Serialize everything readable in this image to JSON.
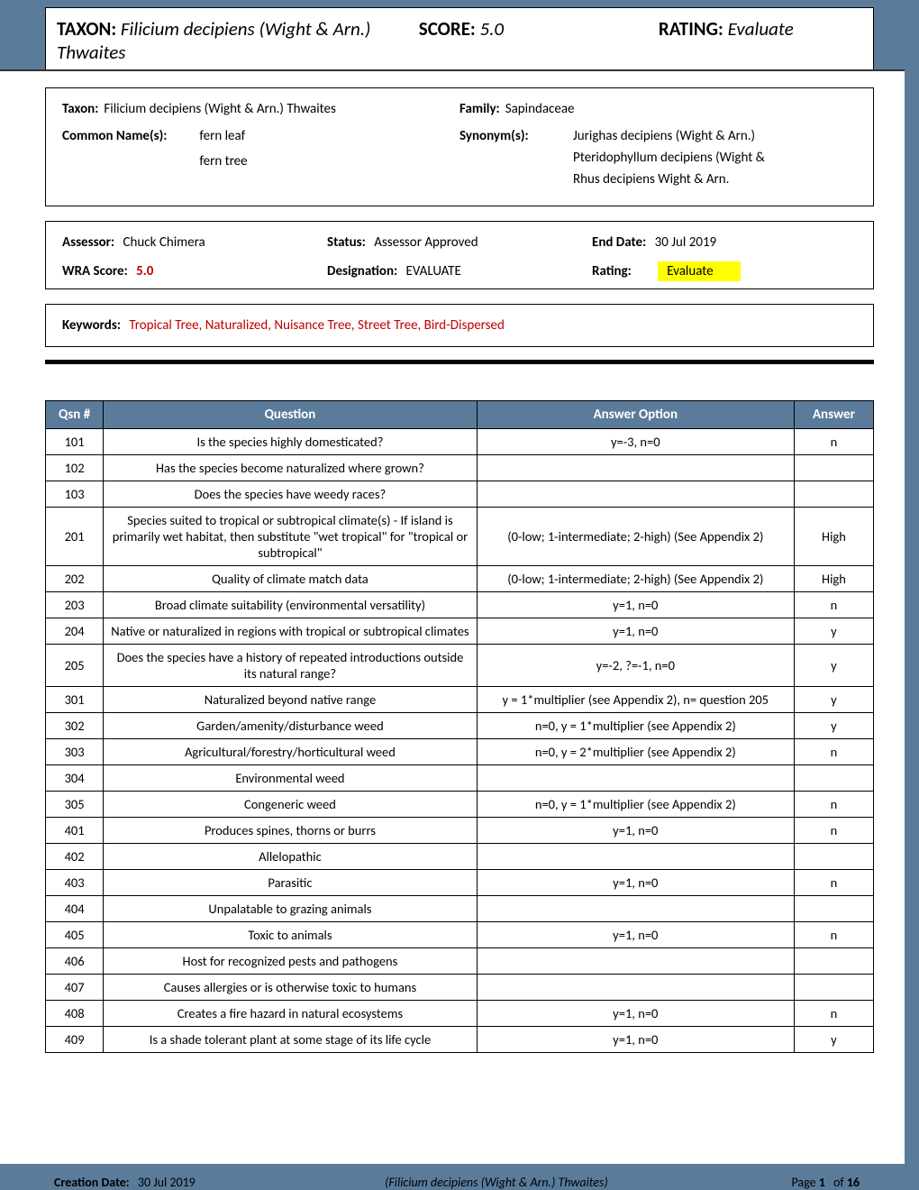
{
  "colors": {
    "header_bg": "#5b7b9b",
    "highlight": "#ffff00",
    "score_red": "#c00000"
  },
  "header": {
    "taxon_label": "TAXON:",
    "taxon_value": "Filicium decipiens (Wight & Arn.) Thwaites",
    "score_label": "SCORE:",
    "score_value": "5.0",
    "rating_label": "RATING:",
    "rating_value": "Evaluate"
  },
  "info": {
    "taxon_label": "Taxon:",
    "taxon_value": "Filicium decipiens (Wight & Arn.) Thwaites",
    "family_label": "Family:",
    "family_value": "Sapindaceae",
    "common_label": "Common Name(s):",
    "common_names": [
      "fern leaf",
      "fern tree"
    ],
    "synonym_label": "Synonym(s):",
    "synonyms": [
      "Jurighas decipiens (Wight & Arn.)",
      "Pteridophyllum decipiens (Wight &",
      "Rhus decipiens Wight & Arn."
    ]
  },
  "status": {
    "assessor_label": "Assessor:",
    "assessor_value": "Chuck Chimera",
    "status_label": "Status:",
    "status_value": "Assessor Approved",
    "enddate_label": "End Date:",
    "enddate_value": "30 Jul 2019",
    "wra_label": "WRA Score:",
    "wra_value": "5.0",
    "designation_label": "Designation:",
    "designation_value": "EVALUATE",
    "rating_label": "Rating:",
    "rating_value": "Evaluate"
  },
  "keywords": {
    "label": "Keywords:",
    "value": "Tropical Tree, Naturalized, Nuisance Tree, Street Tree, Bird-Dispersed"
  },
  "table": {
    "headers": {
      "qsn": "Qsn #",
      "question": "Question",
      "option": "Answer Option",
      "answer": "Answer"
    },
    "rows": [
      {
        "qsn": "101",
        "q": "Is the species highly domesticated?",
        "opt": "y=-3, n=0",
        "ans": "n"
      },
      {
        "qsn": "102",
        "q": "Has the species become naturalized where grown?",
        "opt": "",
        "ans": ""
      },
      {
        "qsn": "103",
        "q": "Does the species have weedy races?",
        "opt": "",
        "ans": ""
      },
      {
        "qsn": "201",
        "q": "Species suited to tropical or subtropical climate(s) - If island is primarily wet habitat, then substitute \"wet tropical\" for \"tropical or subtropical\"",
        "opt": "(0-low; 1-intermediate; 2-high)  (See Appendix 2)",
        "ans": "High"
      },
      {
        "qsn": "202",
        "q": "Quality of climate match data",
        "opt": "(0-low; 1-intermediate; 2-high)  (See Appendix 2)",
        "ans": "High"
      },
      {
        "qsn": "203",
        "q": "Broad climate suitability (environmental versatility)",
        "opt": "y=1, n=0",
        "ans": "n"
      },
      {
        "qsn": "204",
        "q": "Native or naturalized in regions with tropical or subtropical climates",
        "opt": "y=1, n=0",
        "ans": "y"
      },
      {
        "qsn": "205",
        "q": "Does the species have a history of repeated introductions outside its natural range?",
        "opt": "y=-2, ?=-1, n=0",
        "ans": "y"
      },
      {
        "qsn": "301",
        "q": "Naturalized beyond native range",
        "opt": "y = 1*multiplier (see Appendix 2), n= question 205",
        "ans": "y"
      },
      {
        "qsn": "302",
        "q": "Garden/amenity/disturbance weed",
        "opt": "n=0, y = 1*multiplier (see Appendix 2)",
        "ans": "y"
      },
      {
        "qsn": "303",
        "q": "Agricultural/forestry/horticultural weed",
        "opt": "n=0, y = 2*multiplier (see Appendix 2)",
        "ans": "n"
      },
      {
        "qsn": "304",
        "q": "Environmental weed",
        "opt": "",
        "ans": ""
      },
      {
        "qsn": "305",
        "q": "Congeneric weed",
        "opt": "n=0, y = 1*multiplier (see Appendix 2)",
        "ans": "n"
      },
      {
        "qsn": "401",
        "q": "Produces spines, thorns or burrs",
        "opt": "y=1, n=0",
        "ans": "n"
      },
      {
        "qsn": "402",
        "q": "Allelopathic",
        "opt": "",
        "ans": ""
      },
      {
        "qsn": "403",
        "q": "Parasitic",
        "opt": "y=1, n=0",
        "ans": "n"
      },
      {
        "qsn": "404",
        "q": "Unpalatable to grazing animals",
        "opt": "",
        "ans": ""
      },
      {
        "qsn": "405",
        "q": "Toxic to animals",
        "opt": "y=1, n=0",
        "ans": "n"
      },
      {
        "qsn": "406",
        "q": "Host for recognized pests and pathogens",
        "opt": "",
        "ans": ""
      },
      {
        "qsn": "407",
        "q": "Causes allergies or is otherwise toxic to humans",
        "opt": "",
        "ans": ""
      },
      {
        "qsn": "408",
        "q": "Creates a fire hazard in natural ecosystems",
        "opt": "y=1, n=0",
        "ans": "n"
      },
      {
        "qsn": "409",
        "q": "Is a shade tolerant plant at some stage of its life cycle",
        "opt": "y=1, n=0",
        "ans": "y"
      }
    ]
  },
  "footer": {
    "creation_label": "Creation Date:",
    "creation_value": "30 Jul 2019",
    "mid": "(Filicium decipiens (Wight & Arn.) Thwaites)",
    "page_pre": "Page ",
    "page_num": "1",
    "page_of": " of ",
    "page_total": "16"
  }
}
